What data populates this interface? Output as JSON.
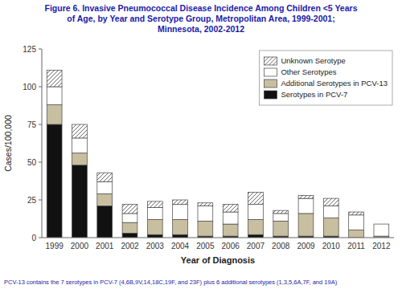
{
  "chart_data": {
    "type": "bar",
    "stacked": true,
    "title": "Figure 6. Invasive Pneumococcal Disease Incidence Among Children <5 Years\nof Age, by Year and Serotype Group, Metropolitan Area, 1999-2001;\nMinnesota, 2002-2012",
    "x_label": "Year of Diagnosis",
    "y_label": "Cases/100,000",
    "categories": [
      "1999",
      "2000",
      "2001",
      "2002",
      "2003",
      "2004",
      "2005",
      "2006",
      "2007",
      "2008",
      "2009",
      "2010",
      "2011",
      "2012"
    ],
    "series": [
      {
        "name": "Serotypes in PCV-7",
        "color": "#111111",
        "values": [
          75,
          48,
          21,
          3,
          2,
          2,
          1,
          1,
          2,
          1,
          1,
          1,
          0,
          0
        ]
      },
      {
        "name": "Additional Serotypes in PCV-13",
        "color": "#c8bfa0",
        "values": [
          13,
          8,
          8,
          7,
          10,
          10,
          10,
          8,
          10,
          10,
          15,
          12,
          5,
          1
        ]
      },
      {
        "name": "Other Serotypes",
        "color": "#ffffff",
        "values": [
          12,
          10,
          8,
          6,
          8,
          10,
          10,
          8,
          10,
          5,
          10,
          8,
          10,
          8
        ]
      },
      {
        "name": "Unknown Serotype",
        "color": "#ffffff",
        "values": [
          11,
          9,
          6,
          6,
          4,
          3,
          2,
          5,
          8,
          2,
          2,
          5,
          2,
          0
        ]
      }
    ],
    "ylim": [
      0,
      125
    ],
    "yticks": [
      0,
      25,
      50,
      75,
      100,
      125
    ],
    "grid": false,
    "legend": "upper right",
    "annotations": [
      "PCV-13 contains the 7 serotypes in PCV-7 (4,6B,9V,14,18C,19F, and 23F) plus 6 additional serotypes (1,3,5,6A,7F, and 19A)"
    ]
  }
}
